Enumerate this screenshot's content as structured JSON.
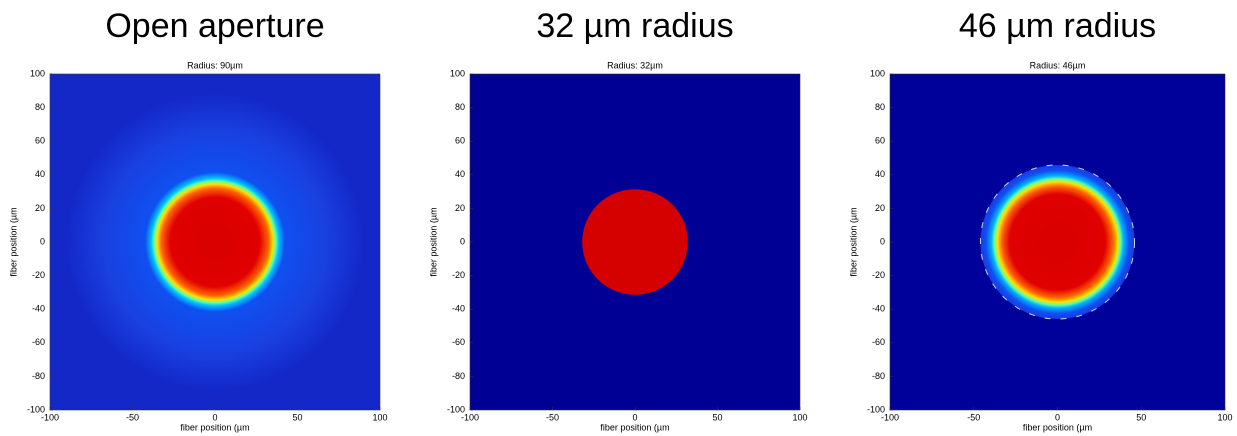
{
  "chart_data": [
    {
      "type": "heatmap",
      "title": "Open aperture",
      "subtitle": "Radius: 90µm",
      "xlabel": "fiber position (µm",
      "ylabel": "fiber position (µm",
      "xlim": [
        -100,
        100
      ],
      "ylim": [
        -100,
        100
      ],
      "xticks": [
        -100,
        -50,
        0,
        50,
        100
      ],
      "yticks": [
        -100,
        -80,
        -60,
        -40,
        -20,
        0,
        20,
        40,
        60,
        80,
        100
      ]
    },
    {
      "type": "heatmap",
      "title": "32 µm radius",
      "subtitle": "Radius: 32µm",
      "xlabel": "fiber position (µm",
      "ylabel": "fiber position (µm",
      "xlim": [
        -100,
        100
      ],
      "ylim": [
        -100,
        100
      ],
      "xticks": [
        -100,
        -50,
        0,
        50,
        100
      ],
      "yticks": [
        -100,
        -80,
        -60,
        -40,
        -20,
        0,
        20,
        40,
        60,
        80,
        100
      ]
    },
    {
      "type": "heatmap",
      "title": "46 µm radius",
      "subtitle": "Radius: 46µm",
      "xlabel": "fiber position (µm",
      "ylabel": "fiber position (µm",
      "xlim": [
        -100,
        100
      ],
      "ylim": [
        -100,
        100
      ],
      "xticks": [
        -100,
        -50,
        0,
        50,
        100
      ],
      "yticks": [
        -100,
        -80,
        -60,
        -40,
        -20,
        0,
        20,
        40,
        60,
        80,
        100
      ]
    }
  ]
}
